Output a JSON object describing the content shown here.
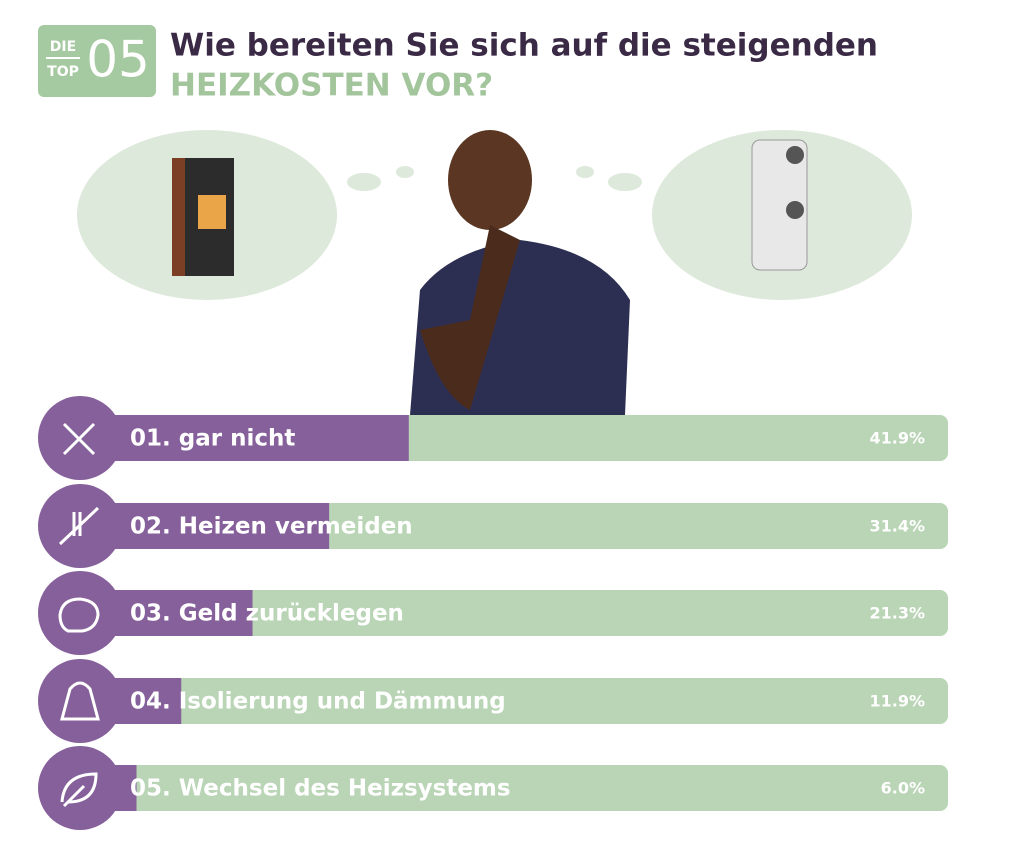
{
  "badge": {
    "top": "DIE",
    "bottom": "TOP",
    "number": "05"
  },
  "chart_data": {
    "type": "bar",
    "orientation": "horizontal",
    "title": "Wie bereiten Sie sich auf die steigenden",
    "subtitle": "HEIZKOSTEN VOR?",
    "categories": [
      "01. gar nicht",
      "02. Heizen vermeiden",
      "03. Geld zurücklegen",
      "04. Isolierung und Dämmung",
      "05. Wechsel des Heizsystems"
    ],
    "values": [
      41.9,
      31.4,
      21.3,
      11.9,
      6.0
    ],
    "value_labels": [
      "41.9%",
      "31.4%",
      "21.3%",
      "11.9%",
      "6.0%"
    ],
    "xlim": [
      0,
      113
    ],
    "color": "#86609a",
    "track_color": "#b9d5b6"
  }
}
